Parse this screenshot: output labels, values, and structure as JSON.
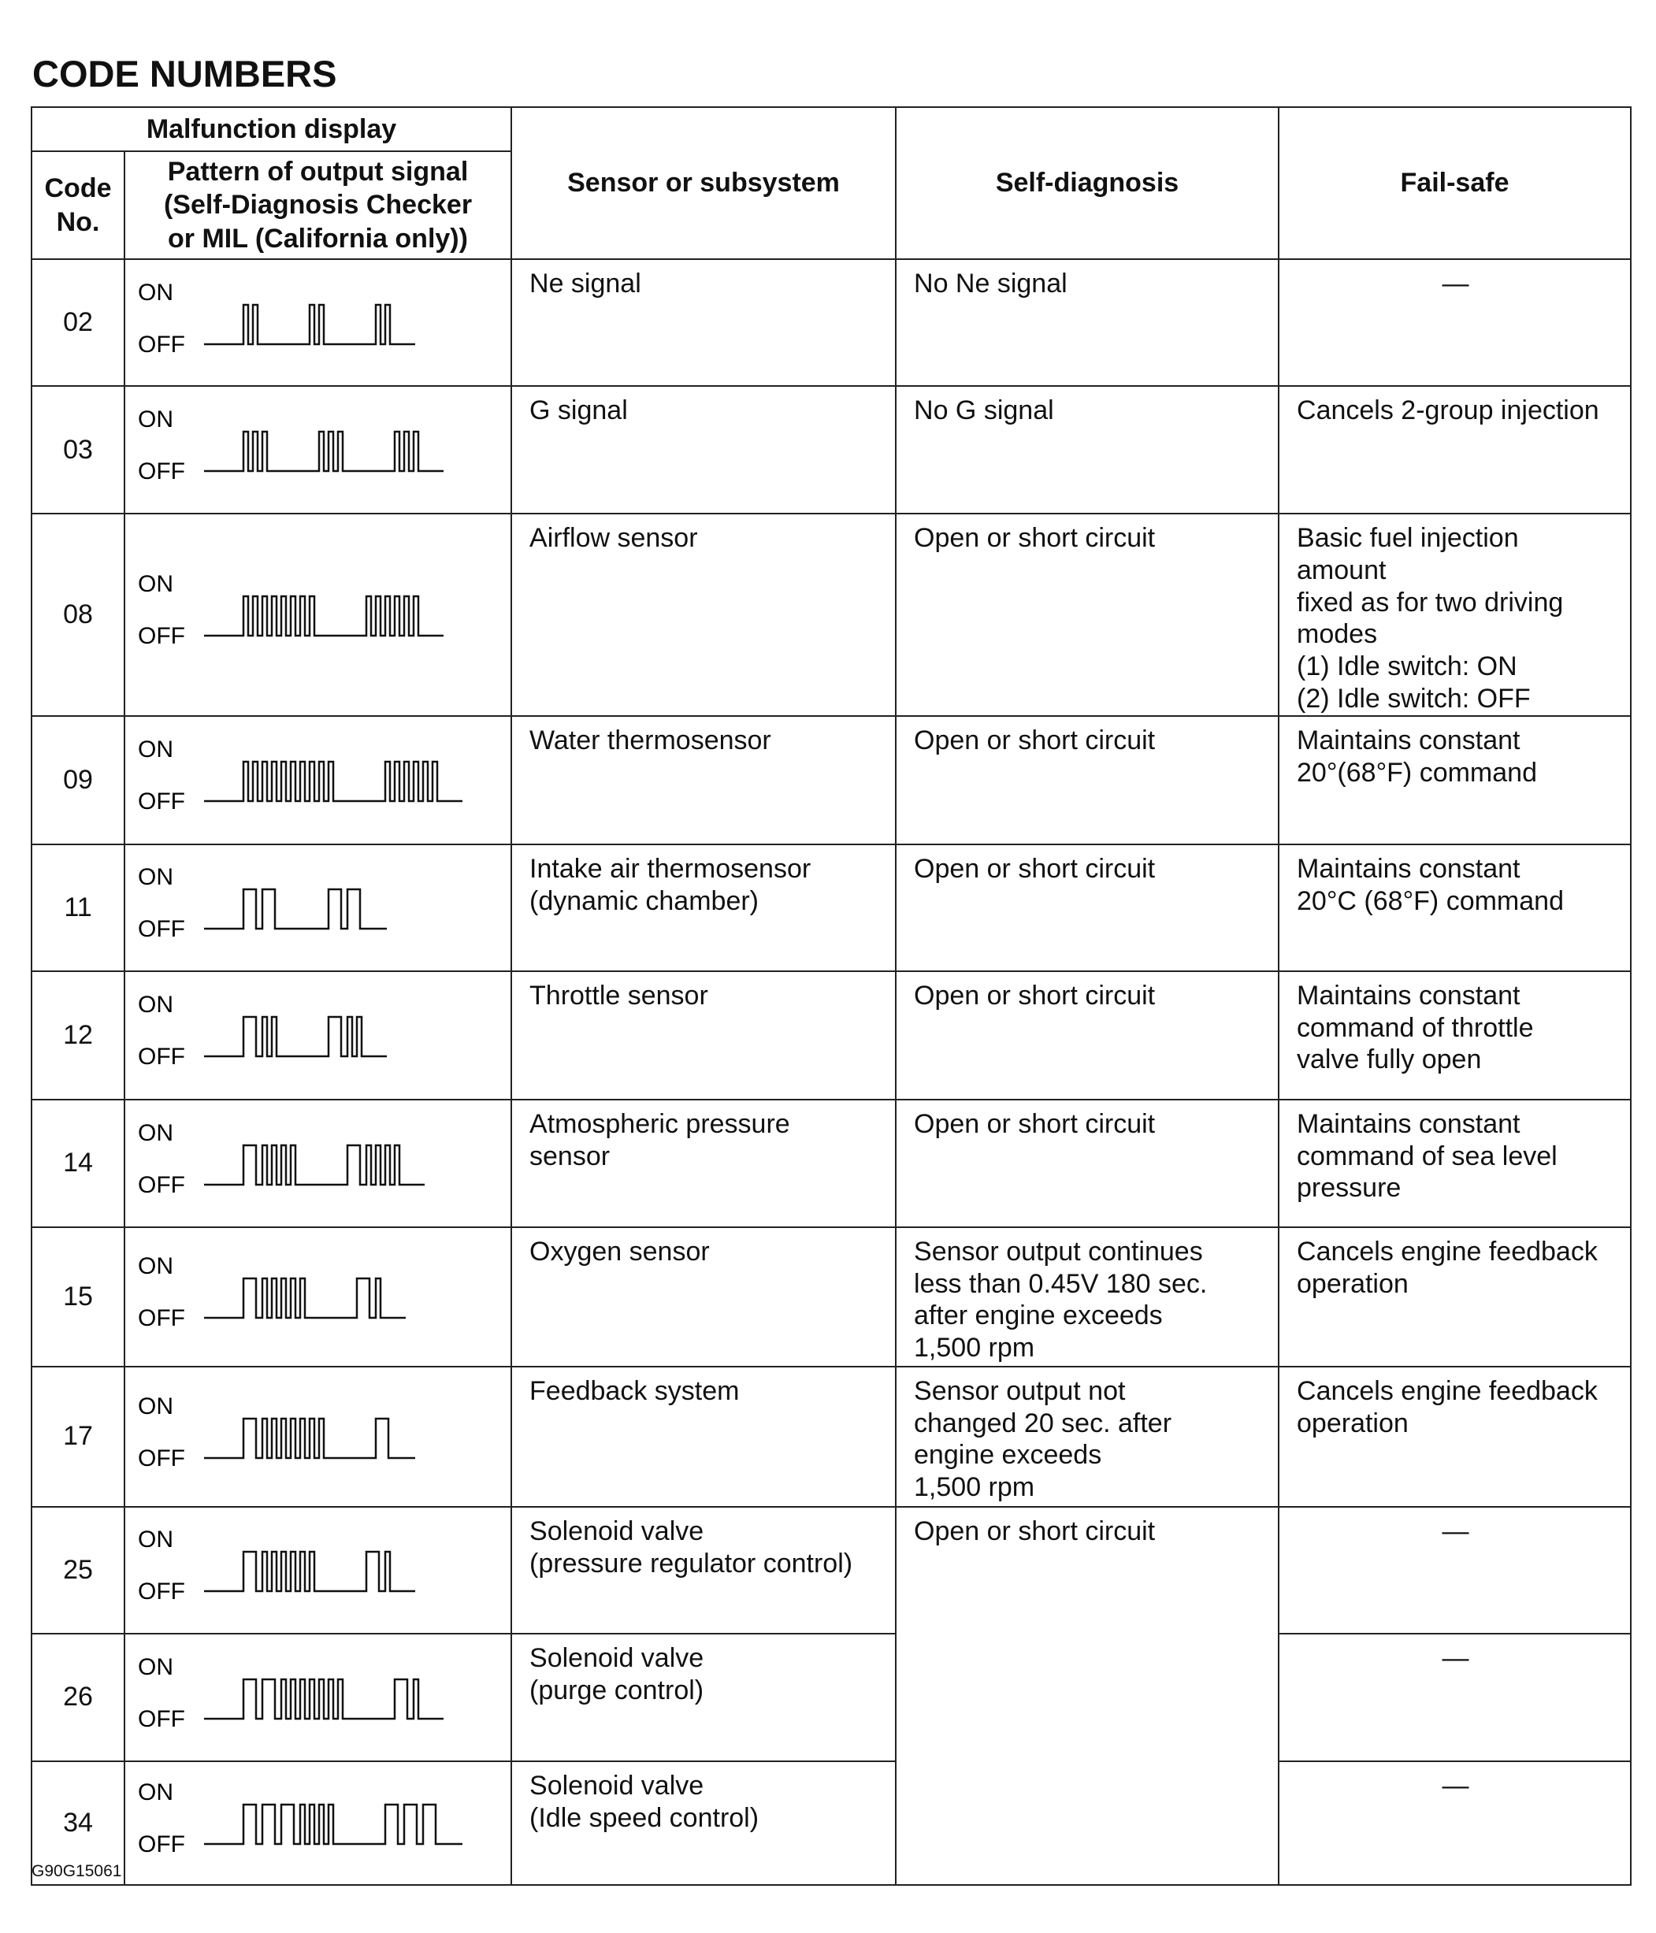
{
  "header": {
    "title": "CODE NUMBERS"
  },
  "table": {
    "columns": {
      "malfunction_display": "Malfunction display",
      "code_no": "Code\nNo.",
      "pattern": "Pattern of output signal\n(Self-Diagnosis Checker\nor MIL (California only))",
      "sensor": "Sensor or subsystem",
      "self_diagnosis": "Self-diagnosis",
      "fail_safe": "Fail-safe"
    },
    "signal_labels": {
      "on": "ON",
      "off": "OFF"
    },
    "rows": [
      {
        "code": "02",
        "sensor": "Ne signal",
        "self_diagnosis": "No Ne signal",
        "fail_safe": "—"
      },
      {
        "code": "03",
        "sensor": "G signal",
        "self_diagnosis": "No G signal",
        "fail_safe": "Cancels 2-group injection"
      },
      {
        "code": "08",
        "sensor": "Airflow sensor",
        "self_diagnosis": "Open or short circuit",
        "fail_safe": "Basic fuel injection amount\nfixed as for two driving\nmodes\n(1) Idle switch: ON\n(2) Idle switch: OFF"
      },
      {
        "code": "09",
        "sensor": "Water thermosensor",
        "self_diagnosis": "Open or short circuit",
        "fail_safe": "Maintains constant\n20°(68°F) command"
      },
      {
        "code": "11",
        "sensor": "Intake air thermosensor\n(dynamic chamber)",
        "self_diagnosis": "Open or short circuit",
        "fail_safe": "Maintains constant\n20°C (68°F) command"
      },
      {
        "code": "12",
        "sensor": "Throttle sensor",
        "self_diagnosis": "Open or short circuit",
        "fail_safe": "Maintains constant\ncommand of throttle\nvalve fully open"
      },
      {
        "code": "14",
        "sensor": "Atmospheric pressure\nsensor",
        "self_diagnosis": "Open or short circuit",
        "fail_safe": "Maintains constant\ncommand of sea level\npressure"
      },
      {
        "code": "15",
        "sensor": "Oxygen sensor",
        "self_diagnosis": "Sensor output continues\nless than 0.45V 180 sec.\nafter engine exceeds\n1,500 rpm",
        "fail_safe": "Cancels engine feedback\noperation"
      },
      {
        "code": "17",
        "sensor": "Feedback system",
        "self_diagnosis": "Sensor output not\nchanged 20 sec. after\nengine exceeds\n1,500 rpm",
        "fail_safe": "Cancels engine feedback\noperation"
      },
      {
        "code": "25",
        "sensor": "Solenoid valve\n(pressure regulator control)",
        "self_diagnosis": "Open or short circuit",
        "fail_safe": "—"
      },
      {
        "code": "26",
        "sensor": "Solenoid valve\n(purge control)",
        "fail_safe": "—"
      },
      {
        "code": "34",
        "sensor": "Solenoid valve\n(Idle speed control)",
        "fail_safe": "—"
      }
    ]
  },
  "footer": {
    "figure_id": "G90G15061"
  }
}
